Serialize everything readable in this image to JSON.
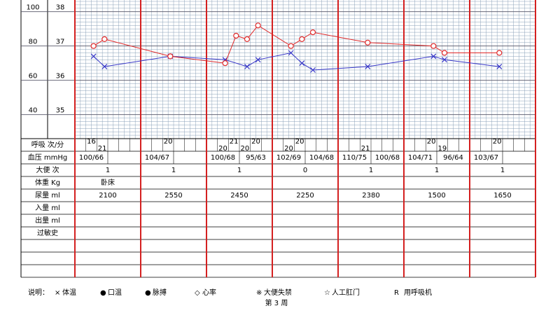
{
  "chart_data": {
    "type": "line",
    "ylim": [
      34.3,
      38.3
    ],
    "yticks": [
      35,
      36,
      37,
      38
    ],
    "y2lim": [
      26,
      106
    ],
    "y2ticks": [
      40,
      60,
      80,
      100
    ],
    "series": [
      {
        "name": "体温",
        "symbol": "×",
        "color": "#3838c8",
        "x": [
          1,
          2,
          8,
          13,
          15,
          16,
          19,
          20,
          21,
          26,
          32,
          33,
          38
        ],
        "values": [
          36.7,
          36.4,
          36.7,
          36.6,
          36.4,
          36.6,
          36.8,
          36.5,
          36.3,
          36.4,
          36.7,
          36.6,
          36.4
        ]
      },
      {
        "name": "脉搏",
        "symbol": "●",
        "color": "#e02828",
        "axis": "y2",
        "x": [
          1,
          2,
          8,
          13,
          14,
          15,
          16,
          19,
          20,
          21,
          26,
          32,
          33,
          38
        ],
        "values": [
          80,
          84,
          74,
          70,
          86,
          84,
          92,
          80,
          84,
          88,
          82,
          80,
          76,
          76
        ]
      }
    ],
    "legend_title": "说明：",
    "notes": [
      {
        "symbol": "●",
        "text": "口温",
        "color": "#000000"
      },
      {
        "symbol": "◇",
        "text": "心率",
        "color": "#e02828"
      },
      {
        "symbol": "※",
        "text": "大便失禁",
        "color": "#000000"
      },
      {
        "symbol": "☆",
        "text": "人工肛门",
        "color": "#000000"
      },
      {
        "symbol": "R",
        "text": "用呼吸机",
        "color": "#000000"
      }
    ],
    "week_label": "第 3 周"
  },
  "table": {
    "rows": [
      {
        "label": "呼吸 次/分",
        "readings": [
          {
            "slot": 1,
            "value": 16
          },
          {
            "slot": 2,
            "value": 21
          },
          {
            "slot": 8,
            "value": 20
          },
          {
            "slot": 13,
            "value": 20
          },
          {
            "slot": 14,
            "value": 21
          },
          {
            "slot": 15,
            "value": 20
          },
          {
            "slot": 16,
            "value": 20
          },
          {
            "slot": 19,
            "value": 20
          },
          {
            "slot": 20,
            "value": 20
          },
          {
            "slot": 26,
            "value": 21
          },
          {
            "slot": 32,
            "value": 20
          },
          {
            "slot": 33,
            "value": 19
          },
          {
            "slot": 38,
            "value": 20
          }
        ]
      },
      {
        "label": "血压 mmHg",
        "halves": [
          "100/66",
          null,
          "104/67",
          null,
          "100/68",
          "95/63",
          "102/69",
          "104/68",
          "110/75",
          "100/68",
          "104/71",
          "96/64",
          "103/67",
          null
        ]
      },
      {
        "label": "大便 次",
        "days": [
          1,
          1,
          1,
          0,
          1,
          1,
          1
        ]
      },
      {
        "label": "体重 Kg",
        "days": [
          "卧床",
          null,
          null,
          null,
          null,
          null,
          null
        ]
      },
      {
        "label": "尿量 ml",
        "days": [
          2100,
          2550,
          2450,
          2250,
          2380,
          1500,
          1650
        ]
      },
      {
        "label": "入量 ml"
      },
      {
        "label": "出量 ml"
      },
      {
        "label": "过敏史"
      }
    ]
  }
}
